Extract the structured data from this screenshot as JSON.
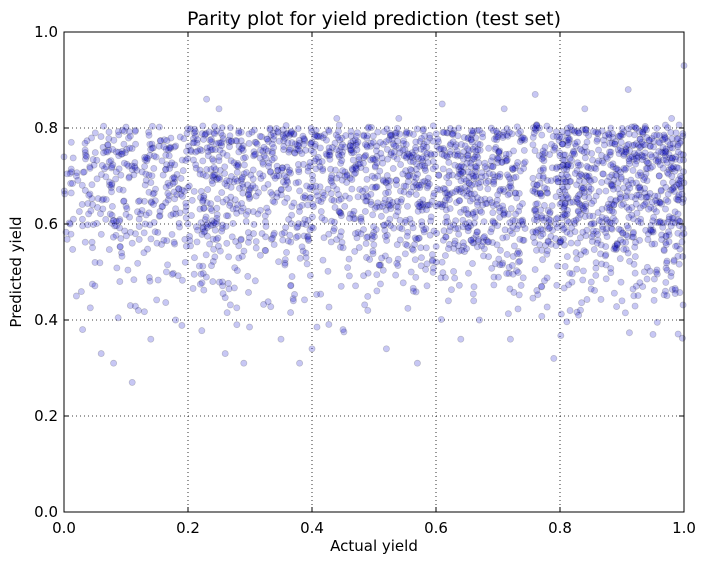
{
  "chart_data": {
    "type": "scatter",
    "title": "Parity plot for yield prediction (test set)",
    "xlabel": "Actual yield",
    "ylabel": "Predicted yield",
    "xlim": [
      0.0,
      1.0
    ],
    "ylim": [
      0.0,
      1.0
    ],
    "xticks": [
      "0.0",
      "0.2",
      "0.4",
      "0.6",
      "0.8",
      "1.0"
    ],
    "yticks": [
      "0.0",
      "0.2",
      "0.4",
      "0.6",
      "0.8",
      "1.0"
    ],
    "grid": true,
    "grid_style": "dotted",
    "marker_color": "#0000cc",
    "marker_alpha": 0.22,
    "gap_in_x_near": 0.75,
    "points": [
      {
        "x": 0.0,
        "y": 0.74
      },
      {
        "x": 0.01,
        "y": 0.6
      },
      {
        "x": 0.02,
        "y": 0.45
      },
      {
        "x": 0.02,
        "y": 0.7
      },
      {
        "x": 0.03,
        "y": 0.38
      },
      {
        "x": 0.04,
        "y": 0.66
      },
      {
        "x": 0.05,
        "y": 0.52
      },
      {
        "x": 0.06,
        "y": 0.33
      },
      {
        "x": 0.07,
        "y": 0.75
      },
      {
        "x": 0.08,
        "y": 0.31
      },
      {
        "x": 0.09,
        "y": 0.48
      },
      {
        "x": 0.1,
        "y": 0.62
      },
      {
        "x": 0.11,
        "y": 0.27
      },
      {
        "x": 0.12,
        "y": 0.42
      },
      {
        "x": 0.13,
        "y": 0.72
      },
      {
        "x": 0.14,
        "y": 0.36
      },
      {
        "x": 0.15,
        "y": 0.56
      },
      {
        "x": 0.17,
        "y": 0.68
      },
      {
        "x": 0.18,
        "y": 0.4
      },
      {
        "x": 0.2,
        "y": 0.6
      },
      {
        "x": 0.21,
        "y": 0.79
      },
      {
        "x": 0.23,
        "y": 0.86
      },
      {
        "x": 0.24,
        "y": 0.48
      },
      {
        "x": 0.25,
        "y": 0.84
      },
      {
        "x": 0.26,
        "y": 0.33
      },
      {
        "x": 0.28,
        "y": 0.64
      },
      {
        "x": 0.29,
        "y": 0.31
      },
      {
        "x": 0.31,
        "y": 0.55
      },
      {
        "x": 0.33,
        "y": 0.72
      },
      {
        "x": 0.35,
        "y": 0.36
      },
      {
        "x": 0.37,
        "y": 0.44
      },
      {
        "x": 0.38,
        "y": 0.31
      },
      {
        "x": 0.4,
        "y": 0.34
      },
      {
        "x": 0.42,
        "y": 0.66
      },
      {
        "x": 0.44,
        "y": 0.82
      },
      {
        "x": 0.45,
        "y": 0.38
      },
      {
        "x": 0.47,
        "y": 0.58
      },
      {
        "x": 0.49,
        "y": 0.42
      },
      {
        "x": 0.51,
        "y": 0.77
      },
      {
        "x": 0.52,
        "y": 0.34
      },
      {
        "x": 0.54,
        "y": 0.82
      },
      {
        "x": 0.56,
        "y": 0.5
      },
      {
        "x": 0.57,
        "y": 0.31
      },
      {
        "x": 0.59,
        "y": 0.64
      },
      {
        "x": 0.61,
        "y": 0.85
      },
      {
        "x": 0.62,
        "y": 0.44
      },
      {
        "x": 0.64,
        "y": 0.36
      },
      {
        "x": 0.66,
        "y": 0.7
      },
      {
        "x": 0.67,
        "y": 0.4
      },
      {
        "x": 0.69,
        "y": 0.59
      },
      {
        "x": 0.71,
        "y": 0.84
      },
      {
        "x": 0.72,
        "y": 0.36
      },
      {
        "x": 0.74,
        "y": 0.78
      },
      {
        "x": 0.76,
        "y": 0.87
      },
      {
        "x": 0.77,
        "y": 0.47
      },
      {
        "x": 0.79,
        "y": 0.32
      },
      {
        "x": 0.81,
        "y": 0.66
      },
      {
        "x": 0.83,
        "y": 0.41
      },
      {
        "x": 0.84,
        "y": 0.84
      },
      {
        "x": 0.86,
        "y": 0.56
      },
      {
        "x": 0.88,
        "y": 0.75
      },
      {
        "x": 0.9,
        "y": 0.44
      },
      {
        "x": 0.91,
        "y": 0.88
      },
      {
        "x": 0.93,
        "y": 0.61
      },
      {
        "x": 0.94,
        "y": 0.78
      },
      {
        "x": 0.95,
        "y": 0.37
      },
      {
        "x": 0.96,
        "y": 0.7
      },
      {
        "x": 0.97,
        "y": 0.46
      },
      {
        "x": 0.98,
        "y": 0.82
      },
      {
        "x": 0.99,
        "y": 0.65
      },
      {
        "x": 1.0,
        "y": 0.93
      },
      {
        "x": 1.0,
        "y": 0.58
      }
    ]
  }
}
